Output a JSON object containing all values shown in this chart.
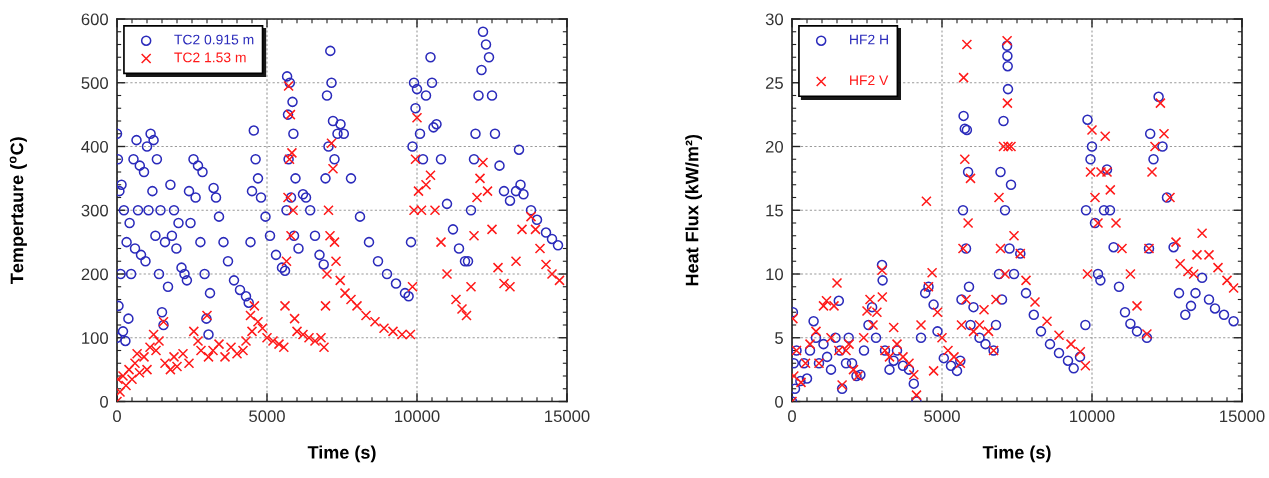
{
  "chart_data": [
    {
      "type": "scatter",
      "xlabel": "Time (s)",
      "ylabel": "Tempertaure ($^{o}$C)",
      "xlim": [
        0,
        15000
      ],
      "xticks": [
        0,
        5000,
        10000,
        15000
      ],
      "ylim": [
        0,
        600
      ],
      "yticks": [
        0,
        100,
        200,
        300,
        400,
        500,
        600
      ],
      "grid": true,
      "legend": "top left",
      "series": [
        {
          "name": "TC2 0.915 m",
          "color": "#2b2bbb",
          "marker": "circle",
          "x": [
            0,
            0,
            30,
            50,
            80,
            120,
            150,
            200,
            230,
            280,
            320,
            380,
            420,
            470,
            550,
            600,
            650,
            700,
            760,
            800,
            900,
            950,
            1000,
            1050,
            1120,
            1180,
            1220,
            1280,
            1330,
            1400,
            1450,
            1500,
            1550,
            1600,
            1700,
            1780,
            1830,
            1900,
            1980,
            2050,
            2150,
            2250,
            2330,
            2400,
            2450,
            2550,
            2620,
            2700,
            2780,
            2850,
            2920,
            2980,
            3050,
            3100,
            3220,
            3300,
            3400,
            3550,
            3700,
            3900,
            4100,
            4300,
            4390,
            4450,
            4500,
            4560,
            4620,
            4700,
            4800,
            4950,
            5100,
            5300,
            5500,
            5600,
            5650,
            5670,
            5700,
            5720,
            5760,
            5800,
            5850,
            5880,
            5900,
            5950,
            6050,
            6200,
            6300,
            6440,
            6600,
            6750,
            6890,
            6950,
            7000,
            7050,
            7110,
            7150,
            7200,
            7250,
            7350,
            7450,
            7560,
            7800,
            8100,
            8400,
            8700,
            9000,
            9300,
            9600,
            9720,
            9800,
            9850,
            9900,
            9950,
            10000,
            10100,
            10200,
            10300,
            10450,
            10500,
            10550,
            10650,
            10800,
            11000,
            11200,
            11400,
            11600,
            11700,
            11800,
            11900,
            11950,
            12050,
            12150,
            12200,
            12300,
            12400,
            12500,
            12600,
            12750,
            12900,
            13100,
            13300,
            13400,
            13450,
            13550,
            13800,
            14000,
            14300,
            14500,
            14700
          ],
          "values": [
            420,
            100,
            380,
            150,
            330,
            200,
            340,
            110,
            300,
            95,
            250,
            130,
            280,
            200,
            380,
            240,
            410,
            300,
            370,
            230,
            360,
            220,
            400,
            300,
            420,
            330,
            410,
            260,
            380,
            200,
            300,
            140,
            120,
            250,
            180,
            340,
            260,
            300,
            240,
            280,
            210,
            200,
            190,
            330,
            280,
            380,
            320,
            370,
            250,
            360,
            200,
            130,
            105,
            170,
            335,
            320,
            290,
            250,
            220,
            190,
            175,
            165,
            155,
            250,
            330,
            425,
            380,
            350,
            320,
            290,
            260,
            230,
            210,
            205,
            300,
            510,
            450,
            380,
            500,
            320,
            470,
            420,
            260,
            350,
            240,
            325,
            320,
            300,
            260,
            230,
            215,
            350,
            480,
            400,
            550,
            500,
            440,
            380,
            420,
            435,
            420,
            350,
            290,
            250,
            220,
            200,
            185,
            170,
            165,
            250,
            400,
            500,
            460,
            490,
            420,
            380,
            480,
            540,
            500,
            430,
            435,
            380,
            310,
            270,
            240,
            220,
            220,
            300,
            380,
            420,
            480,
            520,
            580,
            560,
            540,
            480,
            420,
            370,
            330,
            315,
            330,
            395,
            340,
            325,
            300,
            285,
            265,
            255,
            245
          ]
        },
        {
          "name": "TC2 1.53 m",
          "color": "#ff1a1a",
          "marker": "cross",
          "x": [
            0,
            30,
            100,
            200,
            300,
            400,
            500,
            600,
            670,
            750,
            900,
            1000,
            1100,
            1220,
            1300,
            1400,
            1550,
            1600,
            1780,
            1900,
            2000,
            2200,
            2400,
            2560,
            2700,
            2800,
            3000,
            3050,
            3200,
            3400,
            3600,
            3800,
            4000,
            4200,
            4300,
            4450,
            4500,
            4580,
            4700,
            4850,
            5000,
            5200,
            5400,
            5560,
            5600,
            5650,
            5700,
            5720,
            5750,
            5780,
            5800,
            5830,
            5870,
            5920,
            6000,
            6200,
            6400,
            6600,
            6800,
            6900,
            6950,
            7000,
            7050,
            7100,
            7150,
            7200,
            7250,
            7300,
            7440,
            7600,
            7800,
            8000,
            8300,
            8600,
            8900,
            9200,
            9500,
            9780,
            9850,
            9900,
            9950,
            10000,
            10050,
            10150,
            10300,
            10450,
            10600,
            10800,
            11000,
            11300,
            11500,
            11650,
            11800,
            11900,
            12000,
            12100,
            12200,
            12350,
            12500,
            12700,
            12900,
            13100,
            13300,
            13500,
            13800,
            13950,
            14100,
            14300,
            14500,
            14750
          ],
          "values": [
            0,
            35,
            15,
            40,
            25,
            50,
            35,
            60,
            75,
            45,
            70,
            50,
            85,
            105,
            80,
            95,
            125,
            60,
            50,
            70,
            55,
            75,
            60,
            110,
            95,
            80,
            135,
            70,
            80,
            90,
            70,
            85,
            75,
            80,
            95,
            135,
            110,
            150,
            125,
            115,
            100,
            95,
            90,
            85,
            150,
            220,
            320,
            495,
            380,
            450,
            260,
            390,
            300,
            130,
            110,
            105,
            100,
            95,
            100,
            85,
            150,
            200,
            300,
            260,
            405,
            365,
            250,
            220,
            190,
            170,
            160,
            150,
            135,
            125,
            115,
            110,
            105,
            105,
            180,
            300,
            380,
            445,
            330,
            300,
            340,
            355,
            300,
            250,
            200,
            160,
            145,
            135,
            180,
            260,
            320,
            350,
            375,
            330,
            270,
            210,
            185,
            180,
            220,
            270,
            290,
            270,
            240,
            215,
            200,
            190
          ]
        }
      ]
    },
    {
      "type": "scatter",
      "xlabel": "Time (s)",
      "ylabel": "Heat Flux (kW/m²)",
      "xlim": [
        0,
        15000
      ],
      "xticks": [
        0,
        5000,
        10000,
        15000
      ],
      "ylim": [
        0,
        30
      ],
      "yticks": [
        0,
        5,
        10,
        15,
        20,
        25,
        30
      ],
      "grid": true,
      "legend": "top left",
      "series": [
        {
          "name": "HF2 H",
          "color": "#2b2bbb",
          "marker": "circle",
          "x": [
            0,
            30,
            60,
            100,
            150,
            280,
            400,
            500,
            600,
            720,
            800,
            900,
            1050,
            1170,
            1300,
            1450,
            1560,
            1600,
            1670,
            1800,
            1890,
            2000,
            2150,
            2280,
            2400,
            2550,
            2670,
            2800,
            3000,
            3020,
            3100,
            3250,
            3390,
            3500,
            3700,
            3900,
            4060,
            4150,
            4300,
            4440,
            4550,
            4720,
            4850,
            5060,
            5300,
            5500,
            5610,
            5650,
            5700,
            5720,
            5760,
            5800,
            5830,
            5870,
            5900,
            5950,
            6050,
            6250,
            6450,
            6720,
            6800,
            6900,
            6950,
            7000,
            7050,
            7100,
            7170,
            7180,
            7190,
            7200,
            7250,
            7300,
            7400,
            7610,
            7800,
            8060,
            8300,
            8600,
            8900,
            9200,
            9390,
            9600,
            9780,
            9800,
            9850,
            9950,
            10000,
            10100,
            10200,
            10280,
            10400,
            10500,
            10600,
            10720,
            10900,
            11100,
            11280,
            11500,
            11830,
            11900,
            11940,
            12050,
            12220,
            12350,
            12500,
            12720,
            12900,
            13110,
            13300,
            13450,
            13670,
            13900,
            14100,
            14400,
            14720
          ],
          "values": [
            0,
            7,
            3,
            1,
            4,
            1.6,
            3,
            1.8,
            4,
            6.3,
            5,
            3,
            4.5,
            3.5,
            2.5,
            5,
            7.9,
            4,
            1,
            3,
            5,
            3,
            2,
            2.1,
            4,
            6,
            7.4,
            5,
            10.7,
            9.5,
            4,
            2.5,
            3.2,
            4,
            2.8,
            2.5,
            1.4,
            0,
            5,
            8.5,
            9,
            7.6,
            5.5,
            3.4,
            2.8,
            2.4,
            3.2,
            8,
            15,
            22.4,
            21.4,
            12,
            21.3,
            18,
            9,
            6,
            7.4,
            5,
            4.5,
            4,
            6,
            10,
            18,
            8,
            22,
            15,
            27.9,
            27.1,
            26.3,
            24.5,
            12,
            17,
            10,
            11.6,
            8.5,
            6.8,
            5.5,
            4.5,
            3.8,
            3.2,
            2.6,
            3.5,
            6,
            15,
            22.1,
            19,
            20,
            14,
            10,
            9.5,
            15,
            18.2,
            15,
            12.1,
            9,
            7,
            6.1,
            5.5,
            5,
            12,
            21,
            19,
            23.9,
            20,
            16,
            12.1,
            8.5,
            6.8,
            7.5,
            8.5,
            9.7,
            8,
            7.3,
            6.8,
            6.3
          ]
        },
        {
          "name": "HF2 V",
          "color": "#ff1a1a",
          "marker": "cross",
          "x": [
            0,
            30,
            60,
            150,
            300,
            450,
            600,
            800,
            900,
            1050,
            1150,
            1300,
            1400,
            1500,
            1560,
            1670,
            1800,
            1900,
            2050,
            2200,
            2390,
            2500,
            2600,
            2700,
            2830,
            3000,
            3010,
            3100,
            3250,
            3390,
            3500,
            3700,
            3900,
            4060,
            4150,
            4300,
            4480,
            4550,
            4670,
            4720,
            4850,
            5000,
            5200,
            5400,
            5610,
            5650,
            5700,
            5720,
            5760,
            5800,
            5830,
            5870,
            5950,
            6050,
            6250,
            6400,
            6550,
            6720,
            6800,
            6900,
            6950,
            7050,
            7100,
            7170,
            7180,
            7200,
            7300,
            7400,
            7610,
            7800,
            8100,
            8500,
            8900,
            9300,
            9610,
            9780,
            9850,
            9950,
            10000,
            10100,
            10200,
            10300,
            10440,
            10500,
            10610,
            10800,
            11000,
            11280,
            11500,
            11830,
            11900,
            12000,
            12100,
            12280,
            12400,
            12600,
            12800,
            12940,
            13200,
            13390,
            13500,
            13670,
            13900,
            14200,
            14500,
            14720
          ],
          "values": [
            0,
            6.5,
            2,
            4,
            1.5,
            3,
            4.5,
            5.5,
            3,
            7.5,
            7.9,
            5,
            7.5,
            9.3,
            4,
            1.3,
            4,
            4.5,
            2.5,
            2,
            5,
            7.1,
            8,
            6,
            7,
            10.3,
            8.2,
            4,
            3.5,
            5.8,
            4.5,
            3.5,
            3,
            2.1,
            0.5,
            6,
            15.7,
            9,
            10.1,
            2.4,
            7,
            5,
            4,
            3.5,
            3,
            6,
            12,
            25.4,
            19,
            8,
            28,
            14,
            17.5,
            5.5,
            6,
            7.2,
            5.5,
            4,
            8,
            16,
            12,
            20,
            10,
            28.3,
            23.4,
            20,
            20,
            13,
            11.6,
            9.5,
            7.8,
            6.3,
            5.2,
            4.5,
            3.9,
            2.8,
            10,
            18,
            21.3,
            16,
            14,
            18,
            20.8,
            18,
            16.6,
            14,
            12,
            10,
            7.5,
            5.3,
            12,
            18,
            20,
            23.4,
            21,
            16,
            12.5,
            10.8,
            10.2,
            10,
            11.5,
            13.2,
            11.5,
            10.5,
            9.5,
            8.9
          ]
        }
      ]
    }
  ]
}
